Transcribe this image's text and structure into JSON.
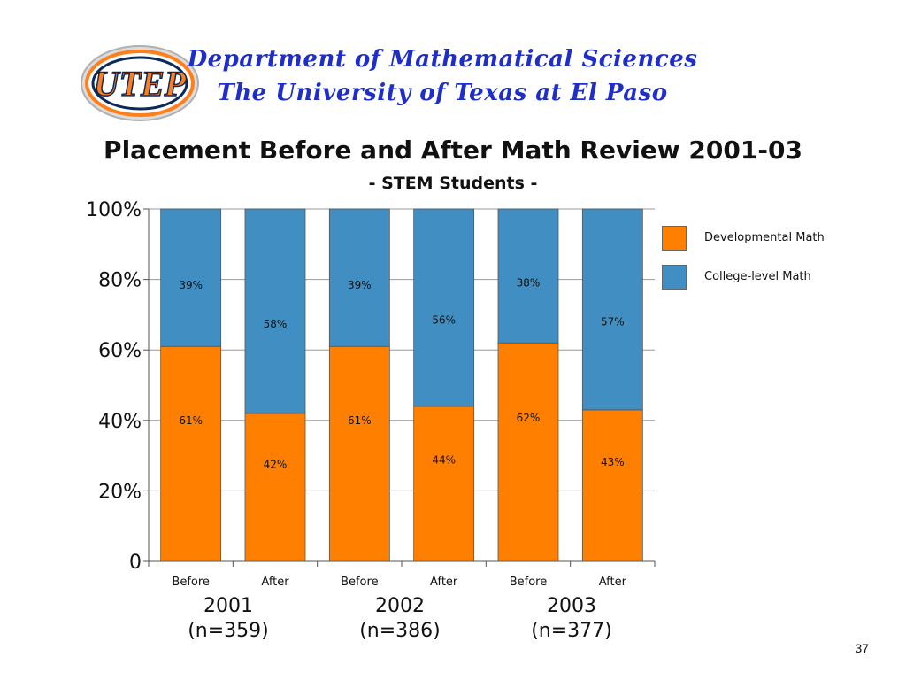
{
  "header": {
    "department": "Department of Mathematical Sciences",
    "university": "The University of Texas at El Paso",
    "logo_text": "UTEP"
  },
  "page_number": "37",
  "colors": {
    "developmental": "#ff8000",
    "college": "#418ec2",
    "header_text": "#1f2ec9"
  },
  "chart_data": {
    "type": "bar",
    "stacked": true,
    "title": "Placement Before and After Math Review 2001-03",
    "subtitle": "- STEM Students -",
    "categories": [
      "Before",
      "After",
      "Before",
      "After",
      "Before",
      "After"
    ],
    "groups": [
      {
        "year": "2001",
        "n": "(n=359)"
      },
      {
        "year": "2002",
        "n": "(n=386)"
      },
      {
        "year": "2003",
        "n": "(n=377)"
      }
    ],
    "series": [
      {
        "name": "Developmental Math",
        "values": [
          61,
          42,
          61,
          44,
          62,
          43
        ],
        "labels": [
          "61%",
          "42%",
          "61%",
          "44%",
          "62%",
          "43%"
        ]
      },
      {
        "name": "College-level Math",
        "values": [
          39,
          58,
          39,
          56,
          38,
          57
        ],
        "labels": [
          "39%",
          "58%",
          "39%",
          "56%",
          "38%",
          "57%"
        ]
      }
    ],
    "y_ticks": [
      "0",
      "20%",
      "40%",
      "60%",
      "80%",
      "100%"
    ],
    "ylim": [
      0,
      100
    ],
    "grid": true,
    "legend_position": "right"
  }
}
